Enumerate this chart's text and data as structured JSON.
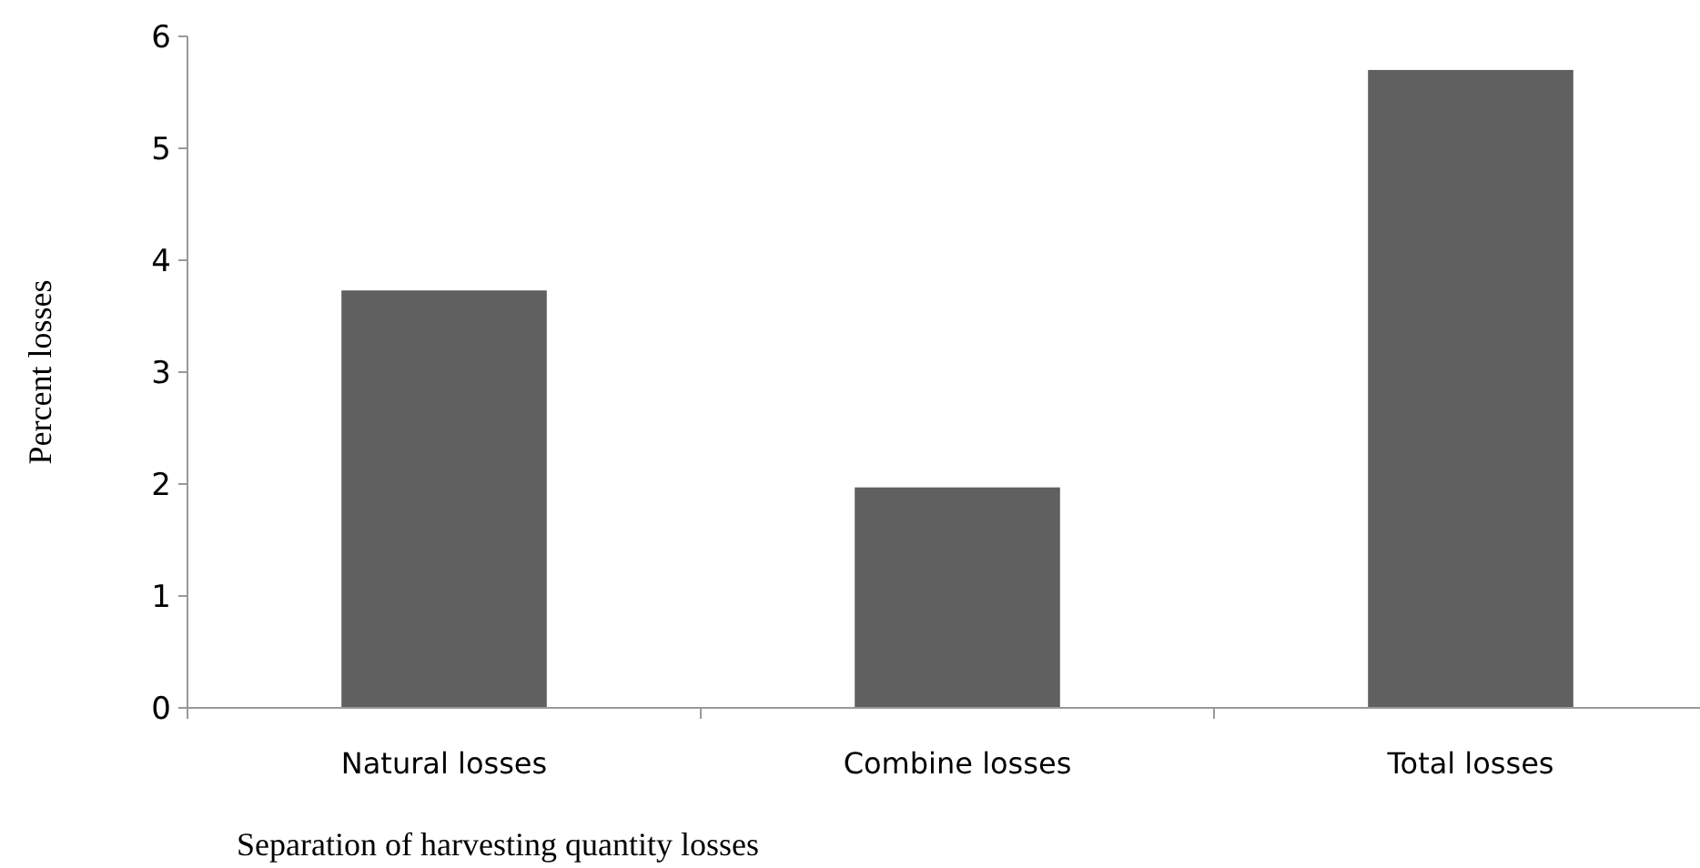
{
  "chart_data": {
    "type": "bar",
    "xlabel": "Separation of harvesting quantity losses",
    "ylabel": "Percent losses",
    "categories": [
      "Natural losses",
      "Combine losses",
      "Total losses"
    ],
    "values": [
      3.73,
      1.97,
      5.7
    ],
    "color": "#606060",
    "ylim": [
      0,
      6
    ],
    "yticks": [
      0,
      1,
      2,
      3,
      4,
      5,
      6
    ],
    "grid": false
  }
}
